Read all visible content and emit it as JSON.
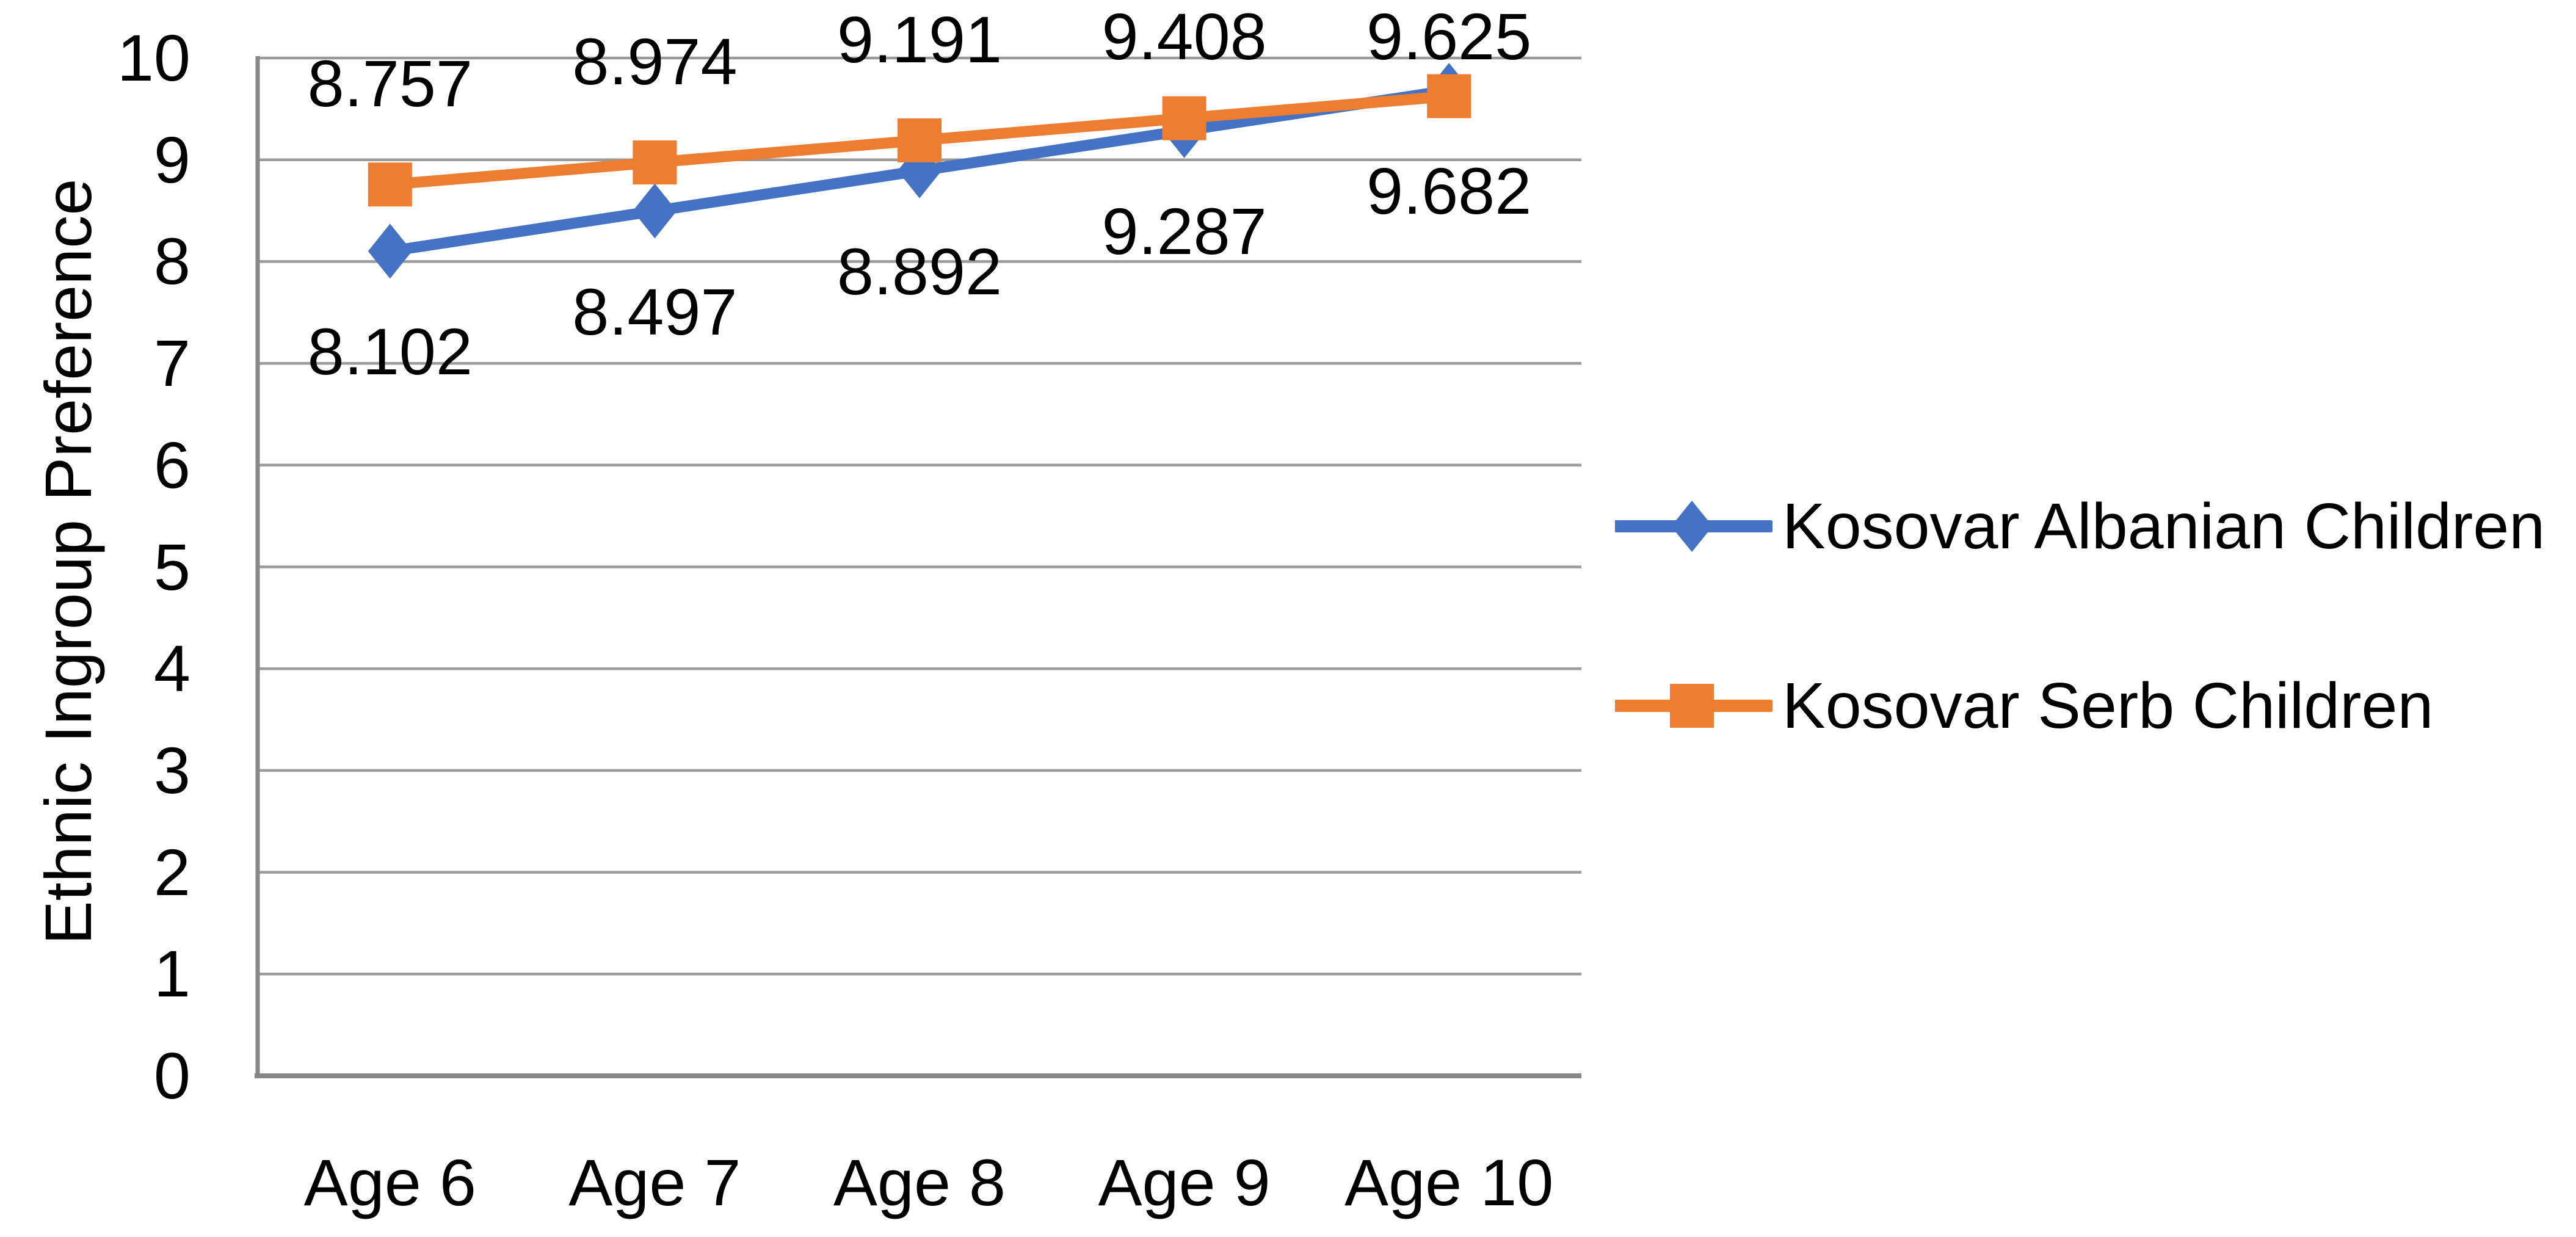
{
  "chart_data": {
    "type": "line",
    "title": "",
    "xlabel": "",
    "ylabel": "Ethnic Ingroup Preference",
    "categories": [
      "Age 6",
      "Age 7",
      "Age 8",
      "Age 9",
      "Age 10"
    ],
    "series": [
      {
        "name": "Kosovar Albanian Children",
        "color": "#4472C4",
        "marker": "diamond",
        "label_position": "below",
        "values": [
          8.102,
          8.497,
          8.892,
          9.287,
          9.682
        ],
        "labels": [
          "8.102",
          "8.497",
          "8.892",
          "9.287",
          "9.682"
        ]
      },
      {
        "name": "Kosovar Serb Children",
        "color": "#ED7D31",
        "marker": "square",
        "label_position": "above",
        "values": [
          8.757,
          8.974,
          9.191,
          9.408,
          9.625
        ],
        "labels": [
          "8.757",
          "8.974",
          "9.191",
          "9.408",
          "9.625"
        ]
      }
    ],
    "ylim": [
      0,
      10
    ],
    "ytick_step": 1,
    "yticks": [
      "0",
      "1",
      "2",
      "3",
      "4",
      "5",
      "6",
      "7",
      "8",
      "9",
      "10"
    ],
    "grid": "horizontal",
    "legend_position": "right",
    "data_labels_shown": true
  },
  "colors": {
    "background": "#FFFFFF",
    "gridline": "#9B9B9B",
    "axis": "#878787",
    "text": "#000000"
  }
}
